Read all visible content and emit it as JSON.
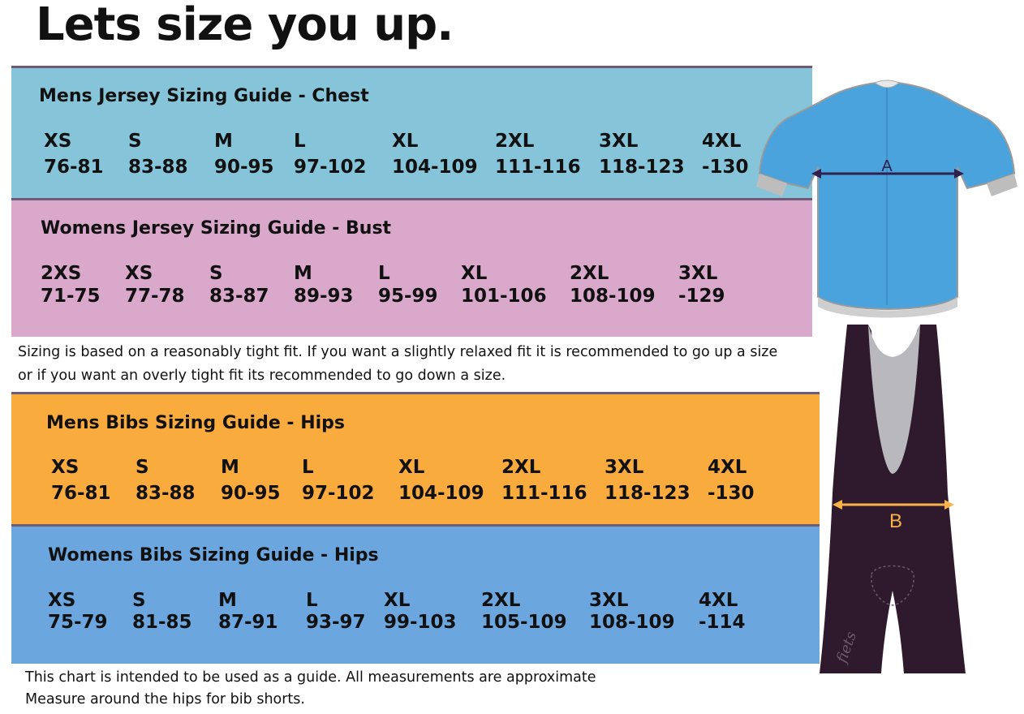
{
  "title": {
    "text": "Lets size you up",
    "dot": "."
  },
  "tables": [
    {
      "heading": "Mens Jersey Sizing Guide - Chest",
      "color": "#86c5d9",
      "sizes": [
        "XS",
        "S",
        "M",
        "L",
        "XL",
        "2XL",
        "3XL",
        "4XL"
      ],
      "ranges": [
        "76-81",
        "83-88",
        "90-95",
        "97-102",
        "104-109",
        "111-116",
        "118-123",
        "-130"
      ]
    },
    {
      "heading": "Womens Jersey Sizing Guide - Bust",
      "color": "#d9a8cb",
      "sizes": [
        "2XS",
        "XS",
        "S",
        "M",
        "L",
        "XL",
        "2XL",
        "3XL"
      ],
      "ranges": [
        "71-75",
        "77-78",
        "83-87",
        "89-93",
        "95-99",
        "101-106",
        "108-109",
        "-129"
      ]
    },
    {
      "heading": "Mens Bibs Sizing Guide - Hips",
      "color": "#f9ab3e",
      "sizes": [
        "XS",
        "S",
        "M",
        "L",
        "XL",
        "2XL",
        "3XL",
        "4XL"
      ],
      "ranges": [
        "76-81",
        "83-88",
        "90-95",
        "97-102",
        "104-109",
        "111-116",
        "118-123",
        "-130"
      ]
    },
    {
      "heading": "Womens Bibs Sizing Guide - Hips",
      "color": "#6ca6df",
      "sizes": [
        "XS",
        "S",
        "M",
        "L",
        "XL",
        "2XL",
        "3XL",
        "4XL"
      ],
      "ranges": [
        "75-79",
        "81-85",
        "87-91",
        "93-97",
        "99-103",
        "105-109",
        "108-109",
        "-114"
      ]
    }
  ],
  "notes": {
    "fit_line1": "Sizing is based on a reasonably tight fit. If you want a slightly relaxed fit it is recommended to go up a size",
    "fit_line2": "or if you want an overly tight fit its recommended to go down a size.",
    "guide_line1": "This chart is intended to be used as a guide. All measurements are approximate",
    "guide_line2": "Measure around the hips for bib shorts."
  },
  "illustrations": {
    "jersey_label": "A",
    "jersey_color": "#4aa3dd",
    "bib_label": "B",
    "bib_color": "#2e1a2c",
    "bib_brand": "fiets",
    "arrow_color": "#f9b24a"
  }
}
